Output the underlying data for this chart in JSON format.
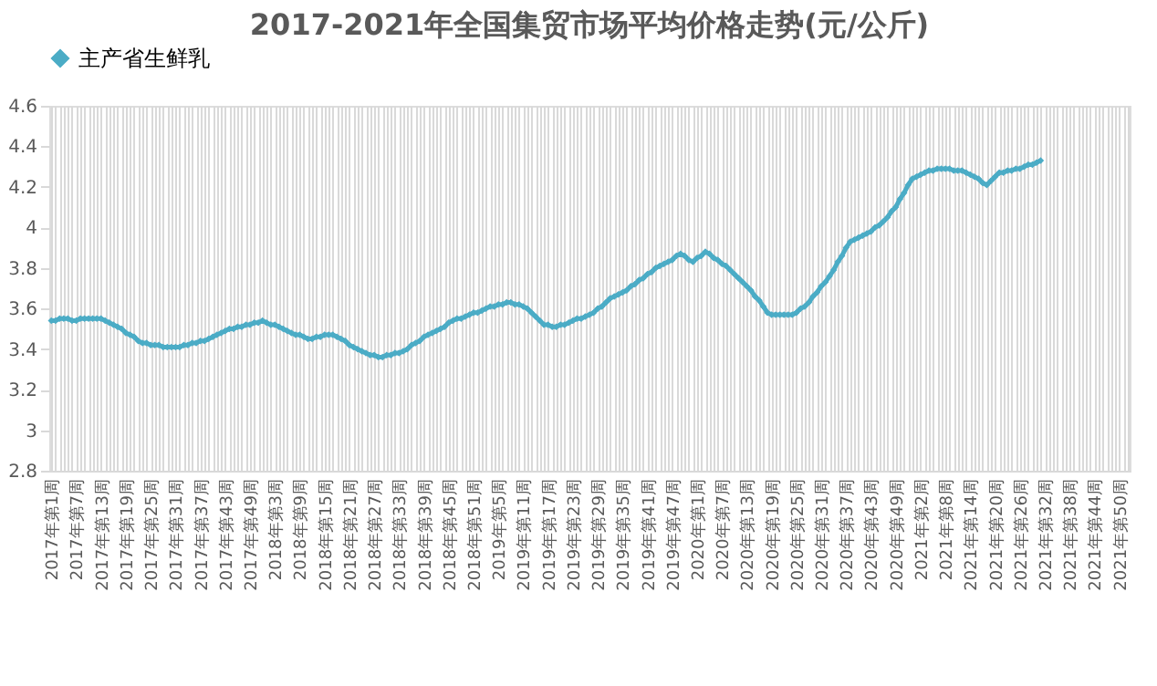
{
  "chart_data": {
    "type": "line",
    "title": "2017-2021年全国集贸市场平均价格走势(元/公斤)",
    "categories": [
      "2017年第1周",
      null,
      null,
      null,
      null,
      null,
      "2017年第7周",
      null,
      null,
      null,
      null,
      null,
      "2017年第13周",
      null,
      null,
      null,
      null,
      null,
      "2017年第19周",
      null,
      null,
      null,
      null,
      null,
      "2017年第25周",
      null,
      null,
      null,
      null,
      null,
      "2017年第31周",
      null,
      null,
      null,
      null,
      null,
      "2017年第37周",
      null,
      null,
      null,
      null,
      null,
      "2017年第43周",
      null,
      null,
      null,
      null,
      null,
      "2017年第49周",
      null,
      null,
      null,
      null,
      null,
      "2018年第3周",
      null,
      null,
      null,
      null,
      null,
      "2018年第9周",
      null,
      null,
      null,
      null,
      null,
      "2018年第15周",
      null,
      null,
      null,
      null,
      null,
      "2018年第21周",
      null,
      null,
      null,
      null,
      null,
      "2018年第27周",
      null,
      null,
      null,
      null,
      null,
      "2018年第33周",
      null,
      null,
      null,
      null,
      null,
      "2018年第39周",
      null,
      null,
      null,
      null,
      null,
      "2018年第45周",
      null,
      null,
      null,
      null,
      null,
      "2018年第51周",
      null,
      null,
      null,
      null,
      null,
      "2019年第5周",
      null,
      null,
      null,
      null,
      null,
      "2019年第11周",
      null,
      null,
      null,
      null,
      null,
      "2019年第17周",
      null,
      null,
      null,
      null,
      null,
      "2019年第23周",
      null,
      null,
      null,
      null,
      null,
      "2019年第29周",
      null,
      null,
      null,
      null,
      null,
      "2019年第35周",
      null,
      null,
      null,
      null,
      null,
      "2019年第41周",
      null,
      null,
      null,
      null,
      null,
      "2019年第47周",
      null,
      null,
      null,
      null,
      null,
      "2020年第1周",
      null,
      null,
      null,
      null,
      null,
      "2020年第7周",
      null,
      null,
      null,
      null,
      null,
      "2020年第13周",
      null,
      null,
      null,
      null,
      null,
      "2020年第19周",
      null,
      null,
      null,
      null,
      null,
      "2020年第25周",
      null,
      null,
      null,
      null,
      null,
      "2020年第31周",
      null,
      null,
      null,
      null,
      null,
      "2020年第37周",
      null,
      null,
      null,
      null,
      null,
      "2020年第43周",
      null,
      null,
      null,
      null,
      null,
      "2020年第49周",
      null,
      null,
      null,
      null,
      null,
      "2021年第2周",
      null,
      null,
      null,
      null,
      null,
      "2021年第8周",
      null,
      null,
      null,
      null,
      null,
      "2021年第14周",
      null,
      null,
      null,
      null,
      null,
      "2021年第20周",
      null,
      null,
      null,
      null,
      null,
      "2021年第26周",
      null,
      null,
      null,
      null,
      null,
      "2021年第32周",
      null,
      null,
      null,
      null,
      null,
      "2021年第38周",
      null,
      null,
      null,
      null,
      null,
      "2021年第44周",
      null,
      null,
      null,
      null,
      null,
      "2021年第50周",
      null,
      null
    ],
    "series": [
      {
        "name": "主产省生鲜乳",
        "color": "#4bacc6",
        "values": [
          3.54,
          3.54,
          3.55,
          3.55,
          3.55,
          3.54,
          3.54,
          3.55,
          3.55,
          3.55,
          3.55,
          3.55,
          3.55,
          3.54,
          3.53,
          3.52,
          3.51,
          3.5,
          3.48,
          3.47,
          3.46,
          3.44,
          3.43,
          3.43,
          3.42,
          3.42,
          3.42,
          3.41,
          3.41,
          3.41,
          3.41,
          3.41,
          3.42,
          3.42,
          3.43,
          3.43,
          3.44,
          3.44,
          3.45,
          3.46,
          3.47,
          3.48,
          3.49,
          3.5,
          3.5,
          3.51,
          3.51,
          3.52,
          3.52,
          3.53,
          3.53,
          3.54,
          3.53,
          3.52,
          3.52,
          3.51,
          3.5,
          3.49,
          3.48,
          3.47,
          3.47,
          3.46,
          3.45,
          3.45,
          3.46,
          3.46,
          3.47,
          3.47,
          3.47,
          3.46,
          3.45,
          3.44,
          3.42,
          3.41,
          3.4,
          3.39,
          3.38,
          3.37,
          3.37,
          3.36,
          3.36,
          3.37,
          3.37,
          3.38,
          3.38,
          3.39,
          3.4,
          3.42,
          3.43,
          3.44,
          3.46,
          3.47,
          3.48,
          3.49,
          3.5,
          3.51,
          3.53,
          3.54,
          3.55,
          3.55,
          3.56,
          3.57,
          3.58,
          3.58,
          3.59,
          3.6,
          3.61,
          3.61,
          3.62,
          3.62,
          3.63,
          3.63,
          3.62,
          3.62,
          3.61,
          3.6,
          3.58,
          3.56,
          3.54,
          3.52,
          3.52,
          3.51,
          3.51,
          3.52,
          3.52,
          3.53,
          3.54,
          3.55,
          3.55,
          3.56,
          3.57,
          3.58,
          3.6,
          3.61,
          3.63,
          3.65,
          3.66,
          3.67,
          3.68,
          3.69,
          3.71,
          3.72,
          3.74,
          3.75,
          3.77,
          3.78,
          3.8,
          3.81,
          3.82,
          3.83,
          3.84,
          3.86,
          3.87,
          3.86,
          3.84,
          3.83,
          3.85,
          3.86,
          3.88,
          3.87,
          3.85,
          3.84,
          3.82,
          3.81,
          3.79,
          3.77,
          3.75,
          3.73,
          3.71,
          3.69,
          3.66,
          3.64,
          3.61,
          3.58,
          3.57,
          3.57,
          3.57,
          3.57,
          3.57,
          3.57,
          3.58,
          3.6,
          3.61,
          3.63,
          3.66,
          3.68,
          3.71,
          3.73,
          3.76,
          3.79,
          3.83,
          3.86,
          3.9,
          3.93,
          3.94,
          3.95,
          3.96,
          3.97,
          3.98,
          4.0,
          4.01,
          4.03,
          4.05,
          4.08,
          4.1,
          4.14,
          4.17,
          4.21,
          4.24,
          4.25,
          4.26,
          4.27,
          4.28,
          4.28,
          4.29,
          4.29,
          4.29,
          4.29,
          4.28,
          4.28,
          4.28,
          4.27,
          4.26,
          4.25,
          4.24,
          4.22,
          4.21,
          4.23,
          4.25,
          4.27,
          4.27,
          4.28,
          4.28,
          4.29,
          4.29,
          4.3,
          4.31,
          4.31,
          4.32,
          4.33,
          null,
          null,
          null,
          null,
          null,
          null,
          null,
          null,
          null,
          null,
          null,
          null,
          null,
          null,
          null,
          null,
          null,
          null,
          null,
          null,
          null
        ]
      }
    ],
    "ylim": [
      2.8,
      4.6
    ],
    "yticks": [
      2.8,
      3,
      3.2,
      3.4,
      3.6,
      3.8,
      4,
      4.2,
      4.4,
      4.6
    ],
    "grid": "x",
    "legend": "top",
    "marker": "diamond",
    "line_style": "solid"
  }
}
